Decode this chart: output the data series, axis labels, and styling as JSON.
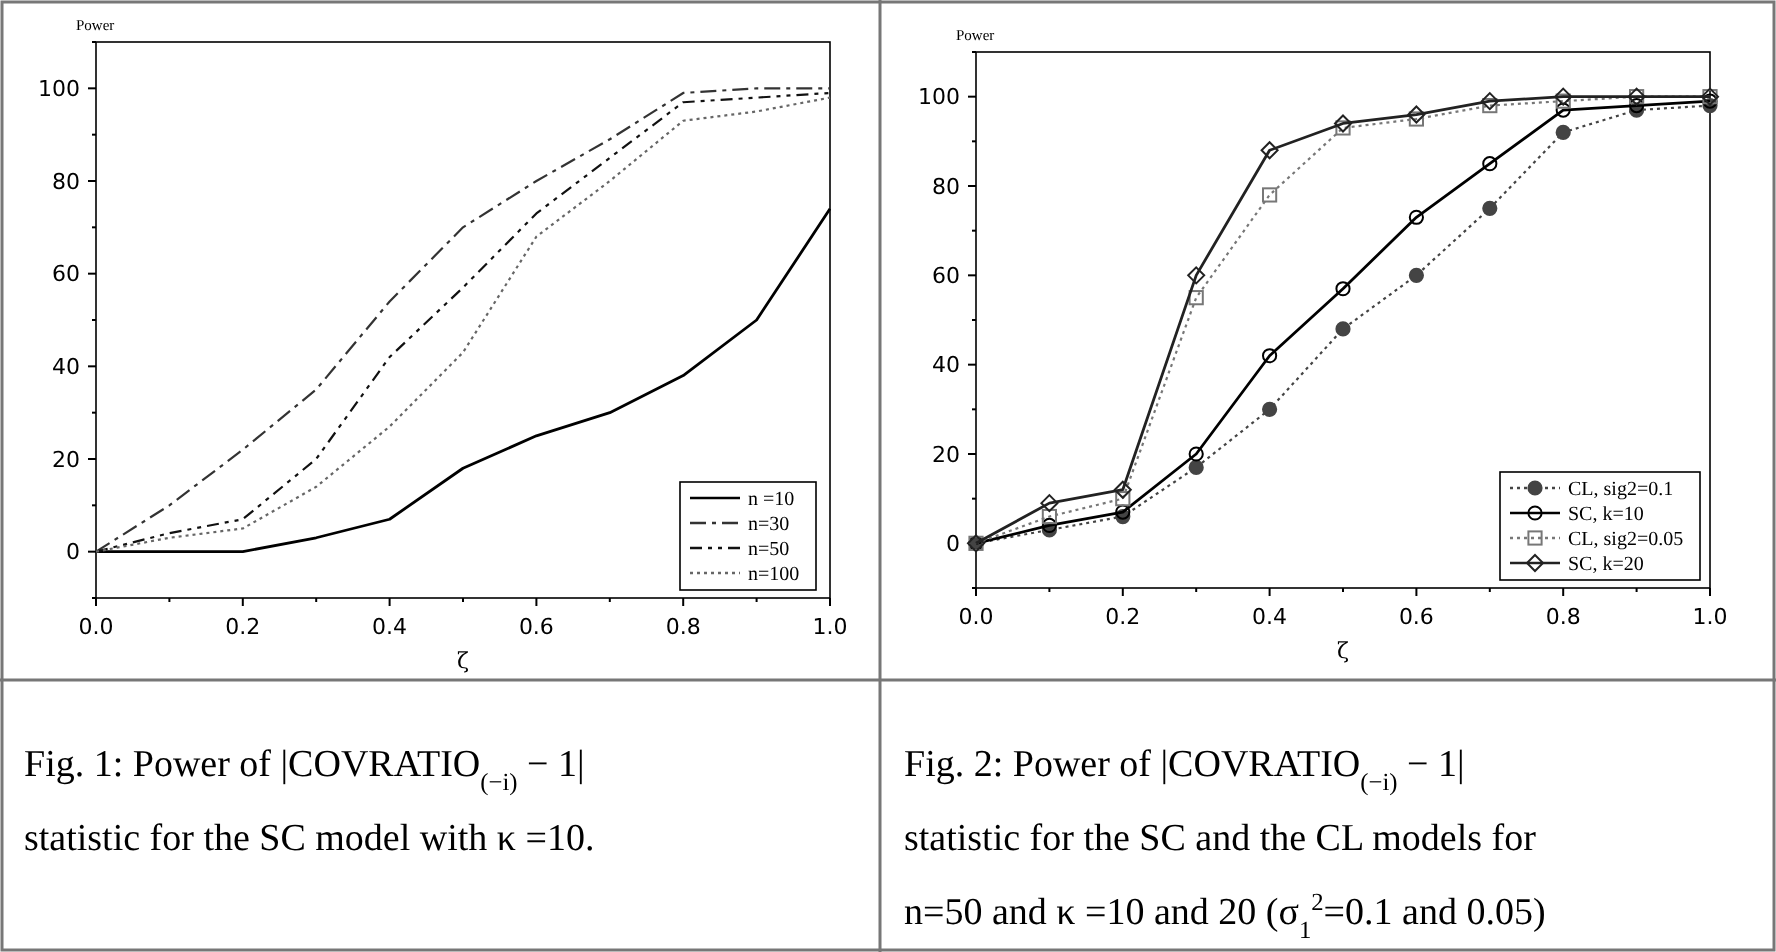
{
  "chart_data": [
    {
      "type": "line",
      "ylabel": "Power",
      "xlabel": "ζ",
      "x": [
        0,
        0.1,
        0.2,
        0.3,
        0.4,
        0.5,
        0.6,
        0.7,
        0.8,
        0.9,
        1.0
      ],
      "xlim": [
        0,
        1
      ],
      "ylim": [
        -10,
        110
      ],
      "xticks": [
        {
          "value": 0,
          "label": "0.0"
        },
        {
          "value": 0.1,
          "label": null
        },
        {
          "value": 0.2,
          "label": "0.2"
        },
        {
          "value": 0.3,
          "label": null
        },
        {
          "value": 0.4,
          "label": "0.4"
        },
        {
          "value": 0.5,
          "label": null
        },
        {
          "value": 0.6,
          "label": "0.6"
        },
        {
          "value": 0.7,
          "label": null
        },
        {
          "value": 0.8,
          "label": "0.8"
        },
        {
          "value": 0.9,
          "label": null
        },
        {
          "value": 1,
          "label": "1.0"
        }
      ],
      "yticks": [
        {
          "value": -10,
          "label": null
        },
        0,
        {
          "value": 10,
          "label": null
        },
        20,
        {
          "value": 30,
          "label": null
        },
        40,
        {
          "value": 50,
          "label": null
        },
        60,
        {
          "value": 70,
          "label": null
        },
        80,
        {
          "value": 90,
          "label": null
        },
        100,
        {
          "value": 110,
          "label": null
        }
      ],
      "legend": "bottom right",
      "grid": false,
      "series": [
        {
          "name": "n =10",
          "color": "#000000",
          "line_style": "solid",
          "marker": "none",
          "values": [
            0,
            0,
            0,
            3,
            7,
            18,
            25,
            30,
            38,
            50,
            74
          ]
        },
        {
          "name": "n=30",
          "color": "#333333",
          "line_style": "dashed",
          "marker": "none",
          "values": [
            0,
            10,
            22,
            35,
            54,
            70,
            80,
            89,
            99,
            100,
            100
          ]
        },
        {
          "name": "n=50",
          "color": "#111111",
          "line_style": "dashed",
          "marker": "none",
          "values": [
            0,
            4,
            7,
            20,
            42,
            57,
            73,
            85,
            97,
            98,
            99
          ]
        },
        {
          "name": "n=100",
          "color": "#666666",
          "line_style": "dotted",
          "marker": "none",
          "values": [
            0,
            3,
            5,
            14,
            27,
            43,
            68,
            80,
            93,
            95,
            98
          ]
        }
      ],
      "annotations": [
        "Fig. 1: Power of |COVRATIO$_{(−i)}$ − 1|\nstatistic for  the SC model with κ =10."
      ]
    },
    {
      "type": "line",
      "ylabel": "Power",
      "xlabel": "ζ",
      "x": [
        0,
        0.1,
        0.2,
        0.3,
        0.4,
        0.5,
        0.6,
        0.7,
        0.8,
        0.9,
        1.0
      ],
      "xlim": [
        0,
        1
      ],
      "ylim": [
        -10,
        110
      ],
      "xticks": [
        {
          "value": 0,
          "label": "0.0"
        },
        {
          "value": 0.1,
          "label": null
        },
        {
          "value": 0.2,
          "label": "0.2"
        },
        {
          "value": 0.3,
          "label": null
        },
        {
          "value": 0.4,
          "label": "0.4"
        },
        {
          "value": 0.5,
          "label": null
        },
        {
          "value": 0.6,
          "label": "0.6"
        },
        {
          "value": 0.7,
          "label": null
        },
        {
          "value": 0.8,
          "label": "0.8"
        },
        {
          "value": 0.9,
          "label": null
        },
        {
          "value": 1,
          "label": "1.0"
        }
      ],
      "yticks": [
        {
          "value": -10,
          "label": null
        },
        0,
        {
          "value": 10,
          "label": null
        },
        20,
        {
          "value": 30,
          "label": null
        },
        40,
        {
          "value": 50,
          "label": null
        },
        60,
        {
          "value": 70,
          "label": null
        },
        80,
        {
          "value": 90,
          "label": null
        },
        100,
        {
          "value": 110,
          "label": null
        }
      ],
      "legend": "bottom right",
      "grid": false,
      "series": [
        {
          "name": "CL, sig2=0.1",
          "color": "#444444",
          "line_style": "dotted",
          "marker": "circle",
          "values": [
            0,
            3,
            6,
            17,
            30,
            48,
            60,
            75,
            92,
            97,
            98
          ]
        },
        {
          "name": "SC, k=10",
          "color": "#000000",
          "line_style": "solid",
          "marker": "circle",
          "values": [
            0,
            4,
            7,
            20,
            42,
            57,
            73,
            85,
            97,
            98,
            99
          ]
        },
        {
          "name": "CL, sig2=0.05",
          "color": "#777777",
          "line_style": "dotted",
          "marker": "square",
          "values": [
            0,
            6,
            10,
            55,
            78,
            93,
            95,
            98,
            99,
            100,
            100
          ]
        },
        {
          "name": "SC, k=20",
          "color": "#222222",
          "line_style": "solid",
          "marker": "diamond",
          "values": [
            0,
            9,
            12,
            60,
            88,
            94,
            96,
            99,
            100,
            100,
            100
          ]
        }
      ],
      "annotations": [
        "Fig. 2: Power of |COVRATIO$_{(−i)}$ − 1|\nstatistic for the SC and the CL models for\nn=50 and  κ =10 and 20 (σ$_{1}$$^{2}$=0.1 and 0.05)"
      ]
    }
  ]
}
